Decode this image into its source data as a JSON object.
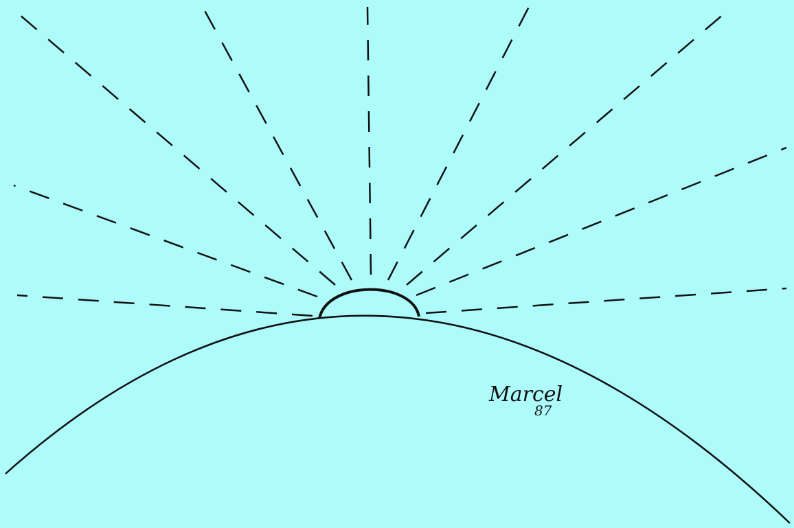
{
  "signature": {
    "name": "Marcel",
    "year": "87"
  }
}
